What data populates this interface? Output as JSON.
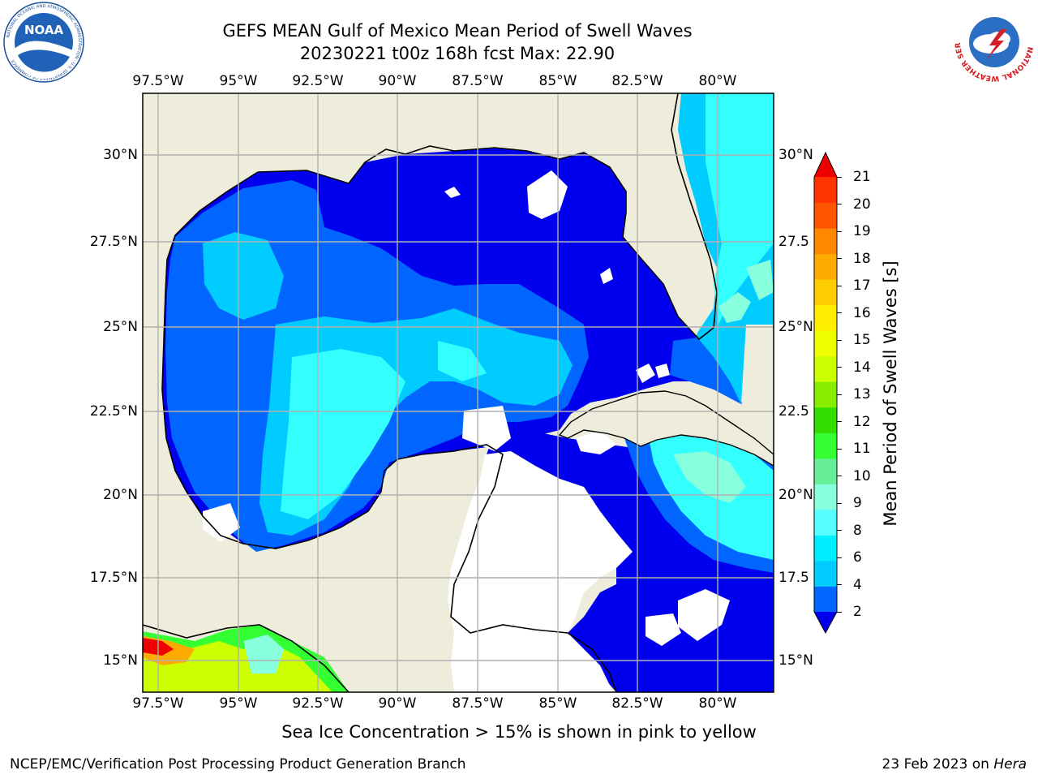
{
  "header": {
    "title_line1": "GEFS MEAN Gulf of Mexico Mean Period of Swell Waves",
    "title_line2": "20230221 t00z 168h fcst   Max: 22.90",
    "left_logo_text": "NOAA",
    "left_logo_ring_text": "NATIONAL OCEANIC AND ATMOSPHERIC ADMINISTRATION · U.S. DEPARTMENT OF COMMERCE",
    "right_logo_ring_text": "NATIONAL WEATHER SERVICE"
  },
  "map": {
    "lon_ticks": [
      "97.5°W",
      "95°W",
      "92.5°W",
      "90°W",
      "87.5°W",
      "85°W",
      "82.5°W",
      "80°W"
    ],
    "lat_ticks_left": [
      "30°N",
      "27.5°N",
      "25°N",
      "22.5°N",
      "20°N",
      "17.5°N",
      "15°N"
    ],
    "lat_ticks_right": [
      "30°N",
      "27.5",
      "25°N",
      "22.5",
      "20°N",
      "17.5",
      "15°N"
    ],
    "colors": {
      "land": "#eeeddc",
      "coast": "#000000",
      "grid": "#b0b0b0",
      "no_data": "#ffffff"
    }
  },
  "colorbar": {
    "label": "Mean Period of Swell Waves [s]",
    "tick_labels": [
      "2",
      "4",
      "6",
      "8",
      "9",
      "10",
      "11",
      "12",
      "13",
      "14",
      "15",
      "16",
      "17",
      "18",
      "19",
      "20",
      "21"
    ],
    "bin_colors": [
      "#0000ee",
      "#0066ff",
      "#00ccff",
      "#00eeff",
      "#55ffff",
      "#88ffdd",
      "#66ee99",
      "#33ff33",
      "#33dd00",
      "#88ee00",
      "#ccff00",
      "#eeff00",
      "#ffee00",
      "#ffcc00",
      "#ffaa00",
      "#ff8800",
      "#ff5500",
      "#ff3300",
      "#ee0000"
    ]
  },
  "footer": {
    "sea_ice_note": "Sea Ice Concentration > 15% is shown in pink to yellow",
    "branch": "NCEP/EMC/Verification Post Processing Product Generation Branch",
    "date_prefix": "23 Feb 2023 on ",
    "machine": "Hera"
  }
}
